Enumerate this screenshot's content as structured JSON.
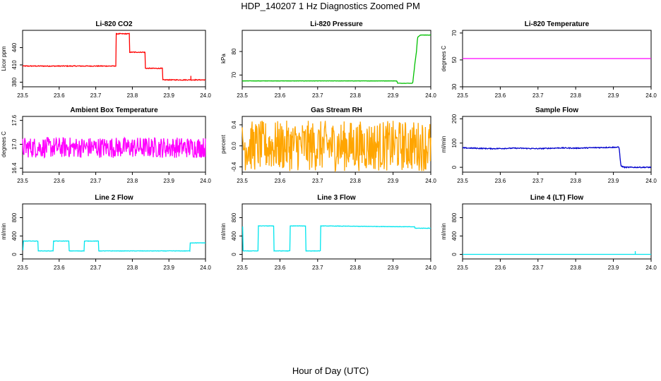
{
  "figure": {
    "title": "HDP_140207  1 Hz Diagnostics Zoomed PM",
    "xlabel": "Hour of Day (UTC)"
  },
  "chart_data": [
    {
      "type": "line",
      "title": "Li-820 CO2",
      "ylabel": "Licor ppm",
      "color": "#ff0000",
      "xlim": [
        23.5,
        24.0
      ],
      "ylim": [
        372,
        470
      ],
      "xticks": [
        "23.5",
        "23.6",
        "23.7",
        "23.8",
        "23.9",
        "24.0"
      ],
      "yticks": [
        380,
        410,
        440
      ],
      "ytick_labels": [
        "380",
        "410",
        "440"
      ],
      "series": [
        {
          "name": "CO2",
          "x": [
            23.5,
            23.755,
            23.755,
            23.792,
            23.792,
            23.835,
            23.835,
            23.883,
            23.883,
            23.98,
            23.98,
            24.0
          ],
          "y": [
            408,
            408,
            464,
            464,
            432,
            432,
            404,
            404,
            384,
            384,
            384,
            384
          ]
        }
      ],
      "noise": 0.7,
      "spikes": [
        [
          23.96,
          391
        ]
      ]
    },
    {
      "type": "line",
      "title": "Li-820 Pressure",
      "ylabel": "kPa",
      "color": "#00c000",
      "xlim": [
        23.5,
        24.0
      ],
      "ylim": [
        65,
        89
      ],
      "xticks": [
        "23.5",
        "23.6",
        "23.7",
        "23.8",
        "23.9",
        "24.0"
      ],
      "yticks": [
        70,
        80
      ],
      "ytick_labels": [
        "70",
        "80"
      ],
      "series": [
        {
          "name": "Pressure",
          "x": [
            23.5,
            23.91,
            23.912,
            23.952,
            23.958,
            23.962,
            23.965,
            23.972,
            24.0
          ],
          "y": [
            67.5,
            67.5,
            66.5,
            66.5,
            75,
            80,
            86,
            87,
            87
          ]
        }
      ],
      "noise": 0.05,
      "spikes": []
    },
    {
      "type": "line",
      "title": "Li-820 Temperature",
      "ylabel": "degrees C",
      "color": "#ff00ff",
      "xlim": [
        23.5,
        24.0
      ],
      "ylim": [
        30,
        72
      ],
      "xticks": [
        "23.5",
        "23.6",
        "23.7",
        "23.8",
        "23.9",
        "24.0"
      ],
      "yticks": [
        30,
        50,
        70
      ],
      "ytick_labels": [
        "30",
        "50",
        "70"
      ],
      "series": [
        {
          "name": "Temperature",
          "x": [
            23.5,
            24.0
          ],
          "y": [
            51,
            51
          ]
        }
      ],
      "noise": 0,
      "spikes": []
    },
    {
      "type": "line",
      "title": "Ambient Box Temperature",
      "ylabel": "degrees C",
      "color": "#ff00ff",
      "xlim": [
        23.5,
        24.0
      ],
      "ylim": [
        16.3,
        17.7
      ],
      "xticks": [
        "23.5",
        "23.6",
        "23.7",
        "23.8",
        "23.9",
        "24.0"
      ],
      "yticks": [
        16.4,
        17.0,
        17.6
      ],
      "ytick_labels": [
        "16.4",
        "17.0",
        "17.6"
      ],
      "series": [
        {
          "name": "Ambient",
          "x": [
            23.5,
            24.0
          ],
          "y": [
            16.92,
            16.92
          ]
        }
      ],
      "noise": 0.26,
      "spikes": []
    },
    {
      "type": "line",
      "title": "Gas Stream RH",
      "ylabel": "percent",
      "color": "#ffa500",
      "xlim": [
        23.5,
        24.0
      ],
      "ylim": [
        -0.5,
        0.56
      ],
      "xticks": [
        "23.5",
        "23.6",
        "23.7",
        "23.8",
        "23.9",
        "24.0"
      ],
      "yticks": [
        -0.4,
        0.0,
        0.4
      ],
      "ytick_labels": [
        "-0.4",
        "0.0",
        "0.4"
      ],
      "series": [
        {
          "name": "RH",
          "x": [
            23.5,
            24.0
          ],
          "y": [
            0.0,
            0.0
          ]
        }
      ],
      "noise": 0.48,
      "spikes": []
    },
    {
      "type": "line",
      "title": "Sample Flow",
      "ylabel": "ml/min",
      "color": "#0000cd",
      "xlim": [
        23.5,
        24.0
      ],
      "ylim": [
        -20,
        210
      ],
      "xticks": [
        "23.5",
        "23.6",
        "23.7",
        "23.8",
        "23.9",
        "24.0"
      ],
      "yticks": [
        0,
        100,
        200
      ],
      "ytick_labels": [
        "0",
        "100",
        "200"
      ],
      "series": [
        {
          "name": "Sample",
          "x": [
            23.5,
            23.58,
            23.64,
            23.7,
            23.76,
            23.8,
            23.85,
            23.915,
            23.92,
            23.93,
            24.0
          ],
          "y": [
            80,
            77,
            79,
            77,
            80,
            79,
            81,
            83,
            5,
            0,
            0
          ]
        }
      ],
      "noise": 2,
      "spikes": []
    },
    {
      "type": "line",
      "title": "Line 2 Flow",
      "ylabel": "ml/min",
      "color": "#00e5ee",
      "xlim": [
        23.5,
        24.0
      ],
      "ylim": [
        -100,
        1100
      ],
      "xticks": [
        "23.5",
        "23.6",
        "23.7",
        "23.8",
        "23.9",
        "24.0"
      ],
      "yticks": [
        0,
        400,
        800
      ],
      "ytick_labels": [
        "0",
        "400",
        "800"
      ],
      "series": [
        {
          "name": "Line2",
          "x": [
            23.5,
            23.502,
            23.502,
            23.542,
            23.542,
            23.584,
            23.584,
            23.627,
            23.627,
            23.668,
            23.668,
            23.708,
            23.708,
            23.958,
            23.958,
            24.0
          ],
          "y": [
            100,
            100,
            290,
            290,
            75,
            75,
            290,
            290,
            75,
            75,
            290,
            290,
            75,
            75,
            250,
            250
          ]
        }
      ],
      "noise": 4,
      "spikes": []
    },
    {
      "type": "line",
      "title": "Line 3 Flow",
      "ylabel": "ml/min",
      "color": "#00e5ee",
      "xlim": [
        23.5,
        24.0
      ],
      "ylim": [
        -100,
        1100
      ],
      "xticks": [
        "23.5",
        "23.6",
        "23.7",
        "23.8",
        "23.9",
        "24.0"
      ],
      "yticks": [
        0,
        400,
        800
      ],
      "ytick_labels": [
        "0",
        "400",
        "800"
      ],
      "series": [
        {
          "name": "Line3",
          "x": [
            23.5,
            23.502,
            23.502,
            23.542,
            23.542,
            23.584,
            23.584,
            23.627,
            23.627,
            23.668,
            23.668,
            23.708,
            23.708,
            23.958,
            23.958,
            24.0
          ],
          "y": [
            600,
            600,
            75,
            75,
            620,
            620,
            75,
            75,
            620,
            620,
            75,
            75,
            620,
            600,
            570,
            570
          ]
        }
      ],
      "noise": 4,
      "spikes": []
    },
    {
      "type": "line",
      "title": "Line 4 (LT) Flow",
      "ylabel": "ml/min",
      "color": "#00e5ee",
      "xlim": [
        23.5,
        24.0
      ],
      "ylim": [
        -100,
        1100
      ],
      "xticks": [
        "23.5",
        "23.6",
        "23.7",
        "23.8",
        "23.9",
        "24.0"
      ],
      "yticks": [
        0,
        400,
        800
      ],
      "ytick_labels": [
        "0",
        "400",
        "800"
      ],
      "series": [
        {
          "name": "Line4",
          "x": [
            23.5,
            24.0
          ],
          "y": [
            0,
            0
          ]
        }
      ],
      "noise": 0,
      "spikes": [
        [
          23.958,
          70
        ]
      ]
    }
  ]
}
